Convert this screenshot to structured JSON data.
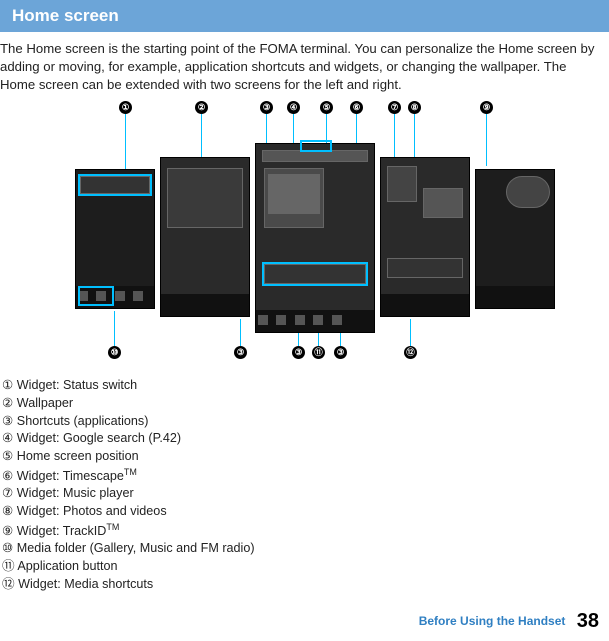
{
  "title": "Home screen",
  "intro": "The Home screen is the starting point of the FOMA terminal. You can personalize the Home screen by adding or moving, for example, application shortcuts and widgets, or changing the wallpaper. The Home screen can be extended with two screens for the left and right.",
  "top_markers": [
    "①",
    "②",
    "③",
    "④",
    "⑤",
    "⑥",
    "⑦",
    "⑧",
    "⑨"
  ],
  "bottom_markers": [
    "⑩",
    "③",
    "③",
    "⑪",
    "③",
    "⑫"
  ],
  "legend": [
    {
      "n": "①",
      "t": "Widget: Status switch"
    },
    {
      "n": "②",
      "t": "Wallpaper"
    },
    {
      "n": "③",
      "t": "Shortcuts (applications)"
    },
    {
      "n": "④",
      "t": "Widget: Google search (P.42)"
    },
    {
      "n": "⑤",
      "t": "Home screen position"
    },
    {
      "n": "⑥",
      "t": "Widget: Timescape",
      "tm": "TM"
    },
    {
      "n": "⑦",
      "t": "Widget: Music player"
    },
    {
      "n": "⑧",
      "t": "Widget: Photos and videos"
    },
    {
      "n": "⑨",
      "t": "Widget: TrackID",
      "tm": "TM"
    },
    {
      "n": "⑩",
      "t": "Media folder (Gallery, Music and FM radio)"
    },
    {
      "n": "⑪",
      "t": "Application button"
    },
    {
      "n": "⑫",
      "t": "Widget: Media shortcuts"
    }
  ],
  "footer_section": "Before Using the Handset",
  "footer_page": "38",
  "colors": {
    "accent": "#00bfff",
    "titlebar": "#6ca5d8"
  }
}
